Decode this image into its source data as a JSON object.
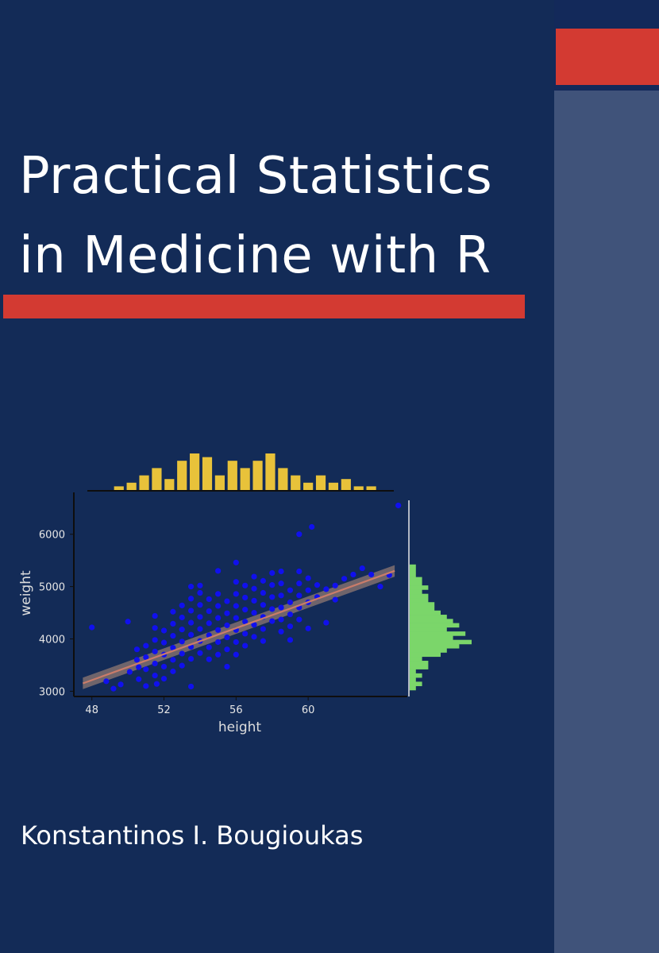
{
  "cover": {
    "title_line1": "Practical Statistics",
    "title_line2": "in Medicine with R",
    "author": "Konstantinos I. Bougioukas",
    "colors": {
      "background": "#132b57",
      "accent_red": "#d33a32",
      "side_panel": "#40537a"
    }
  },
  "chart_data": {
    "type": "scatter",
    "title": "",
    "xlabel": "height",
    "ylabel": "weight",
    "xlim": [
      47,
      65.5
    ],
    "ylim": [
      2900,
      6800
    ],
    "x_ticks": [
      {
        "value": 48,
        "label": "48"
      },
      {
        "value": 52,
        "label": "52"
      },
      {
        "value": 56,
        "label": "56"
      },
      {
        "value": 60,
        "label": "60"
      }
    ],
    "y_ticks": [
      {
        "value": 3000,
        "label": "3000"
      },
      {
        "value": 4000,
        "label": "4000"
      },
      {
        "value": 5000,
        "label": "5000"
      },
      {
        "value": 6000,
        "label": "6000"
      }
    ],
    "grid": false,
    "point_color": "#1010ee",
    "fit_line": {
      "method": "linear",
      "x": [
        47.5,
        64.8
      ],
      "y": [
        3150,
        5300
      ],
      "line_color": "#c97c6a",
      "band_color": "#7a6a6e",
      "band_width": 110
    },
    "series": [
      {
        "values": [
          {
            "x": 48,
            "y": 4220
          },
          {
            "x": 48.8,
            "y": 3190
          },
          {
            "x": 49.2,
            "y": 3050
          },
          {
            "x": 49.6,
            "y": 3130
          },
          {
            "x": 50,
            "y": 4330
          },
          {
            "x": 50.1,
            "y": 3370
          },
          {
            "x": 50.5,
            "y": 3600
          },
          {
            "x": 50.5,
            "y": 3800
          },
          {
            "x": 50.6,
            "y": 3230
          },
          {
            "x": 50.6,
            "y": 3460
          },
          {
            "x": 51,
            "y": 3420
          },
          {
            "x": 51,
            "y": 3650
          },
          {
            "x": 51,
            "y": 3870
          },
          {
            "x": 51,
            "y": 3100
          },
          {
            "x": 51.5,
            "y": 3300
          },
          {
            "x": 51.5,
            "y": 3530
          },
          {
            "x": 51.5,
            "y": 3760
          },
          {
            "x": 51.5,
            "y": 3980
          },
          {
            "x": 51.5,
            "y": 4210
          },
          {
            "x": 51.5,
            "y": 4440
          },
          {
            "x": 51.6,
            "y": 3140
          },
          {
            "x": 52,
            "y": 3700
          },
          {
            "x": 52,
            "y": 3930
          },
          {
            "x": 52,
            "y": 4160
          },
          {
            "x": 52,
            "y": 3470
          },
          {
            "x": 52,
            "y": 3240
          },
          {
            "x": 52.5,
            "y": 3600
          },
          {
            "x": 52.5,
            "y": 3830
          },
          {
            "x": 52.5,
            "y": 4060
          },
          {
            "x": 52.5,
            "y": 4290
          },
          {
            "x": 52.5,
            "y": 4520
          },
          {
            "x": 52.5,
            "y": 3380
          },
          {
            "x": 53,
            "y": 3720
          },
          {
            "x": 53,
            "y": 3950
          },
          {
            "x": 53,
            "y": 4180
          },
          {
            "x": 53,
            "y": 4410
          },
          {
            "x": 53,
            "y": 4640
          },
          {
            "x": 53,
            "y": 3490
          },
          {
            "x": 53.5,
            "y": 3620
          },
          {
            "x": 53.5,
            "y": 3850
          },
          {
            "x": 53.5,
            "y": 4080
          },
          {
            "x": 53.5,
            "y": 4310
          },
          {
            "x": 53.5,
            "y": 4540
          },
          {
            "x": 53.5,
            "y": 4770
          },
          {
            "x": 53.5,
            "y": 5000
          },
          {
            "x": 53.5,
            "y": 3090
          },
          {
            "x": 54,
            "y": 3730
          },
          {
            "x": 54,
            "y": 3960
          },
          {
            "x": 54,
            "y": 4190
          },
          {
            "x": 54,
            "y": 4420
          },
          {
            "x": 54,
            "y": 4650
          },
          {
            "x": 54,
            "y": 4880
          },
          {
            "x": 54,
            "y": 5020
          },
          {
            "x": 54.5,
            "y": 3840
          },
          {
            "x": 54.5,
            "y": 4070
          },
          {
            "x": 54.5,
            "y": 4300
          },
          {
            "x": 54.5,
            "y": 4530
          },
          {
            "x": 54.5,
            "y": 4760
          },
          {
            "x": 54.5,
            "y": 3610
          },
          {
            "x": 55,
            "y": 3940
          },
          {
            "x": 55,
            "y": 4170
          },
          {
            "x": 55,
            "y": 4400
          },
          {
            "x": 55,
            "y": 4630
          },
          {
            "x": 55,
            "y": 4860
          },
          {
            "x": 55,
            "y": 3700
          },
          {
            "x": 55,
            "y": 5300
          },
          {
            "x": 55.5,
            "y": 3800
          },
          {
            "x": 55.5,
            "y": 4030
          },
          {
            "x": 55.5,
            "y": 4260
          },
          {
            "x": 55.5,
            "y": 4490
          },
          {
            "x": 55.5,
            "y": 4720
          },
          {
            "x": 55.5,
            "y": 3470
          },
          {
            "x": 56,
            "y": 3940
          },
          {
            "x": 56,
            "y": 4170
          },
          {
            "x": 56,
            "y": 4400
          },
          {
            "x": 56,
            "y": 4630
          },
          {
            "x": 56,
            "y": 4860
          },
          {
            "x": 56,
            "y": 5090
          },
          {
            "x": 56,
            "y": 3700
          },
          {
            "x": 56,
            "y": 5460
          },
          {
            "x": 56.5,
            "y": 4100
          },
          {
            "x": 56.5,
            "y": 4330
          },
          {
            "x": 56.5,
            "y": 4560
          },
          {
            "x": 56.5,
            "y": 4790
          },
          {
            "x": 56.5,
            "y": 5020
          },
          {
            "x": 56.5,
            "y": 3870
          },
          {
            "x": 57,
            "y": 4040
          },
          {
            "x": 57,
            "y": 4270
          },
          {
            "x": 57,
            "y": 4500
          },
          {
            "x": 57,
            "y": 4730
          },
          {
            "x": 57,
            "y": 4960
          },
          {
            "x": 57,
            "y": 5190
          },
          {
            "x": 57.5,
            "y": 4190
          },
          {
            "x": 57.5,
            "y": 4420
          },
          {
            "x": 57.5,
            "y": 4650
          },
          {
            "x": 57.5,
            "y": 4880
          },
          {
            "x": 57.5,
            "y": 5110
          },
          {
            "x": 57.5,
            "y": 3960
          },
          {
            "x": 58,
            "y": 4340
          },
          {
            "x": 58,
            "y": 4570
          },
          {
            "x": 58,
            "y": 4800
          },
          {
            "x": 58,
            "y": 5030
          },
          {
            "x": 58,
            "y": 5260
          },
          {
            "x": 58.5,
            "y": 4140
          },
          {
            "x": 58.5,
            "y": 4370
          },
          {
            "x": 58.5,
            "y": 4600
          },
          {
            "x": 58.5,
            "y": 4830
          },
          {
            "x": 58.5,
            "y": 5060
          },
          {
            "x": 58.5,
            "y": 5290
          },
          {
            "x": 59,
            "y": 4240
          },
          {
            "x": 59,
            "y": 4470
          },
          {
            "x": 59,
            "y": 4700
          },
          {
            "x": 59,
            "y": 4930
          },
          {
            "x": 59,
            "y": 3980
          },
          {
            "x": 59.5,
            "y": 4370
          },
          {
            "x": 59.5,
            "y": 4600
          },
          {
            "x": 59.5,
            "y": 4830
          },
          {
            "x": 59.5,
            "y": 5060
          },
          {
            "x": 59.5,
            "y": 5290
          },
          {
            "x": 59.5,
            "y": 6000
          },
          {
            "x": 60,
            "y": 4700
          },
          {
            "x": 60,
            "y": 4930
          },
          {
            "x": 60,
            "y": 5160
          },
          {
            "x": 60,
            "y": 4200
          },
          {
            "x": 60.5,
            "y": 4800
          },
          {
            "x": 60.5,
            "y": 5030
          },
          {
            "x": 61,
            "y": 4950
          },
          {
            "x": 61,
            "y": 4310
          },
          {
            "x": 61.5,
            "y": 4750
          },
          {
            "x": 61.5,
            "y": 5020
          },
          {
            "x": 62,
            "y": 5150
          },
          {
            "x": 63,
            "y": 5350
          },
          {
            "x": 63.5,
            "y": 5230
          },
          {
            "x": 64,
            "y": 5000
          },
          {
            "x": 64.5,
            "y": 5220
          },
          {
            "x": 65,
            "y": 6550
          },
          {
            "x": 62.5,
            "y": 5230
          },
          {
            "x": 60.2,
            "y": 6140
          }
        ]
      }
    ],
    "top_histogram": {
      "variable": "height",
      "color": "#e8c23a",
      "bins": [
        {
          "x": 49.5,
          "count": 1
        },
        {
          "x": 50.2,
          "count": 2
        },
        {
          "x": 50.9,
          "count": 4
        },
        {
          "x": 51.6,
          "count": 6
        },
        {
          "x": 52.3,
          "count": 3
        },
        {
          "x": 53.0,
          "count": 8
        },
        {
          "x": 53.7,
          "count": 10
        },
        {
          "x": 54.4,
          "count": 9
        },
        {
          "x": 55.1,
          "count": 4
        },
        {
          "x": 55.8,
          "count": 8
        },
        {
          "x": 56.5,
          "count": 6
        },
        {
          "x": 57.2,
          "count": 8
        },
        {
          "x": 57.9,
          "count": 10
        },
        {
          "x": 58.6,
          "count": 6
        },
        {
          "x": 59.3,
          "count": 4
        },
        {
          "x": 60.0,
          "count": 2
        },
        {
          "x": 60.7,
          "count": 4
        },
        {
          "x": 61.4,
          "count": 2
        },
        {
          "x": 62.1,
          "count": 3
        },
        {
          "x": 62.8,
          "count": 1
        },
        {
          "x": 63.5,
          "count": 1
        }
      ]
    },
    "right_histogram": {
      "variable": "weight",
      "color": "#7bd66a",
      "bins": [
        {
          "y": 3060,
          "count": 1
        },
        {
          "y": 3140,
          "count": 2
        },
        {
          "y": 3220,
          "count": 1
        },
        {
          "y": 3300,
          "count": 2
        },
        {
          "y": 3380,
          "count": 1
        },
        {
          "y": 3460,
          "count": 3
        },
        {
          "y": 3540,
          "count": 3
        },
        {
          "y": 3620,
          "count": 2
        },
        {
          "y": 3700,
          "count": 5
        },
        {
          "y": 3780,
          "count": 6
        },
        {
          "y": 3860,
          "count": 8
        },
        {
          "y": 3940,
          "count": 10
        },
        {
          "y": 4020,
          "count": 7
        },
        {
          "y": 4100,
          "count": 9
        },
        {
          "y": 4180,
          "count": 6
        },
        {
          "y": 4260,
          "count": 8
        },
        {
          "y": 4340,
          "count": 7
        },
        {
          "y": 4420,
          "count": 6
        },
        {
          "y": 4500,
          "count": 5
        },
        {
          "y": 4580,
          "count": 4
        },
        {
          "y": 4660,
          "count": 4
        },
        {
          "y": 4740,
          "count": 3
        },
        {
          "y": 4820,
          "count": 3
        },
        {
          "y": 4900,
          "count": 2
        },
        {
          "y": 4980,
          "count": 3
        },
        {
          "y": 5060,
          "count": 2
        },
        {
          "y": 5140,
          "count": 2
        },
        {
          "y": 5220,
          "count": 1
        },
        {
          "y": 5300,
          "count": 1
        },
        {
          "y": 5380,
          "count": 1
        }
      ]
    }
  }
}
